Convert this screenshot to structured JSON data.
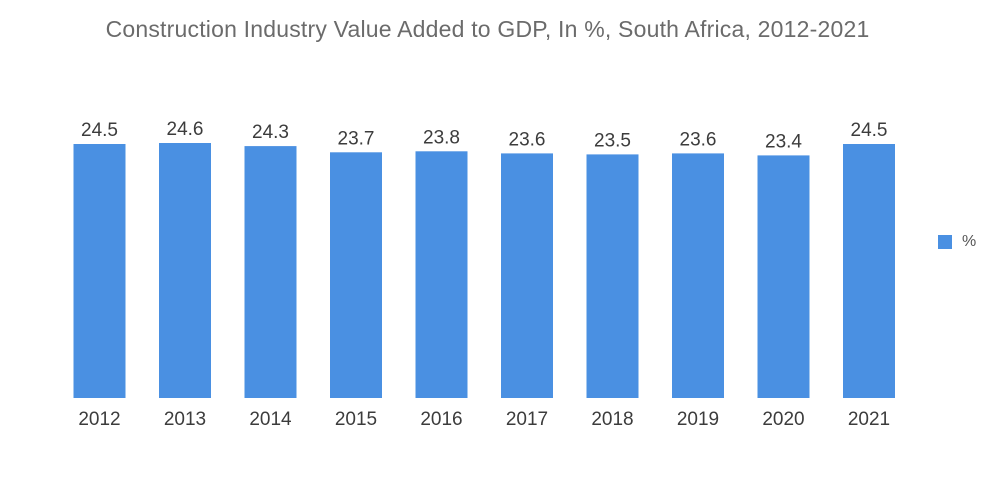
{
  "chart_data": {
    "type": "bar",
    "title": "Construction Industry Value Added to GDP, In %, South Africa, 2012-2021",
    "categories": [
      "2012",
      "2013",
      "2014",
      "2015",
      "2016",
      "2017",
      "2018",
      "2019",
      "2020",
      "2021"
    ],
    "series": [
      {
        "name": "%",
        "values": [
          24.5,
          24.6,
          24.3,
          23.7,
          23.8,
          23.6,
          23.5,
          23.6,
          23.4,
          24.5
        ],
        "value_labels": [
          "24.5",
          "24.6",
          "24.3",
          "23.7",
          "23.8",
          "23.6",
          "23.5",
          "23.6",
          "23.4",
          "24.5"
        ]
      }
    ],
    "xlabel": "",
    "ylabel": "",
    "ylim": [
      0,
      24.6
    ],
    "grid": false,
    "legend_position": "right",
    "bar_color": "#4a90e2"
  }
}
